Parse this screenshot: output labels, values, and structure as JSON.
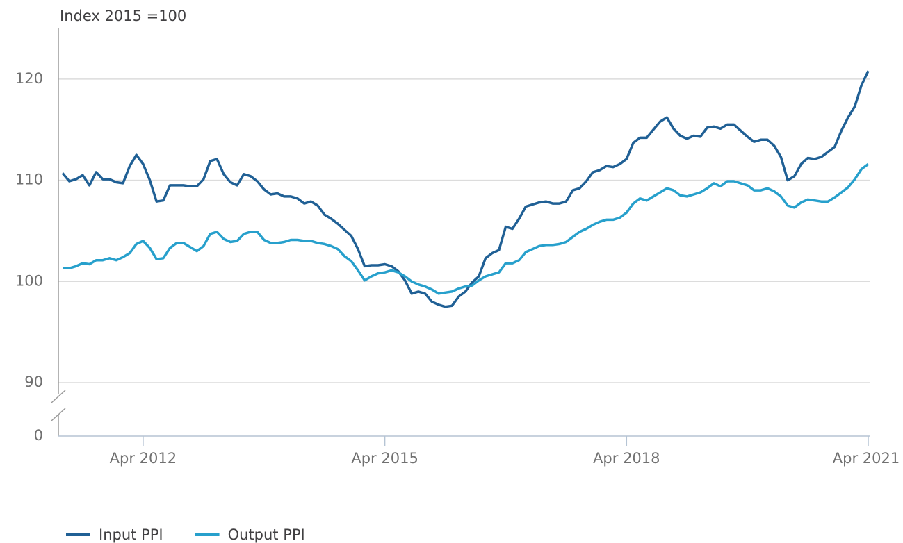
{
  "chart_data": {
    "type": "line",
    "y_axis_label": "Index 2015 =100",
    "x": [
      "Apr 2011",
      "May 2011",
      "Jun 2011",
      "Jul 2011",
      "Aug 2011",
      "Sep 2011",
      "Oct 2011",
      "Nov 2011",
      "Dec 2011",
      "Jan 2012",
      "Feb 2012",
      "Mar 2012",
      "Apr 2012",
      "May 2012",
      "Jun 2012",
      "Jul 2012",
      "Aug 2012",
      "Sep 2012",
      "Oct 2012",
      "Nov 2012",
      "Dec 2012",
      "Jan 2013",
      "Feb 2013",
      "Mar 2013",
      "Apr 2013",
      "May 2013",
      "Jun 2013",
      "Jul 2013",
      "Aug 2013",
      "Sep 2013",
      "Oct 2013",
      "Nov 2013",
      "Dec 2013",
      "Jan 2014",
      "Feb 2014",
      "Mar 2014",
      "Apr 2014",
      "May 2014",
      "Jun 2014",
      "Jul 2014",
      "Aug 2014",
      "Sep 2014",
      "Oct 2014",
      "Nov 2014",
      "Dec 2014",
      "Jan 2015",
      "Feb 2015",
      "Mar 2015",
      "Apr 2015",
      "May 2015",
      "Jun 2015",
      "Jul 2015",
      "Aug 2015",
      "Sep 2015",
      "Oct 2015",
      "Nov 2015",
      "Dec 2015",
      "Jan 2016",
      "Feb 2016",
      "Mar 2016",
      "Apr 2016",
      "May 2016",
      "Jun 2016",
      "Jul 2016",
      "Aug 2016",
      "Sep 2016",
      "Oct 2016",
      "Nov 2016",
      "Dec 2016",
      "Jan 2017",
      "Feb 2017",
      "Mar 2017",
      "Apr 2017",
      "May 2017",
      "Jun 2017",
      "Jul 2017",
      "Aug 2017",
      "Sep 2017",
      "Oct 2017",
      "Nov 2017",
      "Dec 2017",
      "Jan 2018",
      "Feb 2018",
      "Mar 2018",
      "Apr 2018",
      "May 2018",
      "Jun 2018",
      "Jul 2018",
      "Aug 2018",
      "Sep 2018",
      "Oct 2018",
      "Nov 2018",
      "Dec 2018",
      "Jan 2019",
      "Feb 2019",
      "Mar 2019",
      "Apr 2019",
      "May 2019",
      "Jun 2019",
      "Jul 2019",
      "Aug 2019",
      "Sep 2019",
      "Oct 2019",
      "Nov 2019",
      "Dec 2019",
      "Jan 2020",
      "Feb 2020",
      "Mar 2020",
      "Apr 2020",
      "May 2020",
      "Jun 2020",
      "Jul 2020",
      "Aug 2020",
      "Sep 2020",
      "Oct 2020",
      "Nov 2020",
      "Dec 2020",
      "Jan 2021",
      "Feb 2021",
      "Mar 2021",
      "Apr 2021"
    ],
    "series": [
      {
        "name": "Input PPI",
        "color": "#206095",
        "values": [
          110.7,
          109.9,
          110.1,
          110.5,
          109.5,
          110.8,
          110.1,
          110.1,
          109.8,
          109.7,
          111.4,
          112.5,
          111.6,
          110.0,
          107.9,
          108.0,
          109.5,
          109.5,
          109.5,
          109.4,
          109.4,
          110.1,
          111.9,
          112.1,
          110.6,
          109.8,
          109.5,
          110.6,
          110.4,
          109.9,
          109.1,
          108.6,
          108.7,
          108.4,
          108.4,
          108.2,
          107.7,
          107.9,
          107.5,
          106.6,
          106.2,
          105.7,
          105.1,
          104.5,
          103.2,
          101.5,
          101.6,
          101.6,
          101.7,
          101.5,
          101.0,
          100.1,
          98.8,
          99.0,
          98.8,
          98.0,
          97.7,
          97.5,
          97.6,
          98.5,
          99.0,
          99.9,
          100.5,
          102.3,
          102.8,
          103.1,
          105.4,
          105.2,
          106.2,
          107.4,
          107.6,
          107.8,
          107.9,
          107.7,
          107.7,
          107.9,
          109.0,
          109.2,
          109.9,
          110.8,
          111.0,
          111.4,
          111.3,
          111.6,
          112.1,
          113.7,
          114.2,
          114.2,
          115.0,
          115.8,
          116.2,
          115.1,
          114.4,
          114.1,
          114.4,
          114.3,
          115.2,
          115.3,
          115.1,
          115.5,
          115.5,
          114.9,
          114.3,
          113.8,
          114.0,
          114.0,
          113.4,
          112.3,
          110.0,
          110.4,
          111.6,
          112.2,
          112.1,
          112.3,
          112.8,
          113.3,
          114.9,
          116.2,
          117.3,
          119.4,
          120.8
        ]
      },
      {
        "name": "Output PPI",
        "color": "#27a0cc",
        "values": [
          101.3,
          101.3,
          101.5,
          101.8,
          101.7,
          102.1,
          102.1,
          102.3,
          102.1,
          102.4,
          102.8,
          103.7,
          104.0,
          103.3,
          102.2,
          102.3,
          103.3,
          103.8,
          103.8,
          103.4,
          103.0,
          103.5,
          104.7,
          104.9,
          104.2,
          103.9,
          104.0,
          104.7,
          104.9,
          104.9,
          104.1,
          103.8,
          103.8,
          103.9,
          104.1,
          104.1,
          104.0,
          104.0,
          103.8,
          103.7,
          103.5,
          103.2,
          102.5,
          102.0,
          101.1,
          100.1,
          100.5,
          100.8,
          100.9,
          101.1,
          100.9,
          100.5,
          100.0,
          99.7,
          99.5,
          99.2,
          98.8,
          98.9,
          99.0,
          99.3,
          99.5,
          99.6,
          100.1,
          100.5,
          100.7,
          100.9,
          101.8,
          101.8,
          102.1,
          102.9,
          103.2,
          103.5,
          103.6,
          103.6,
          103.7,
          103.9,
          104.4,
          104.9,
          105.2,
          105.6,
          105.9,
          106.1,
          106.1,
          106.3,
          106.8,
          107.7,
          108.2,
          108.0,
          108.4,
          108.8,
          109.2,
          109.0,
          108.5,
          108.4,
          108.6,
          108.8,
          109.2,
          109.7,
          109.4,
          109.9,
          109.9,
          109.7,
          109.5,
          109.0,
          109.0,
          109.2,
          108.9,
          108.4,
          107.5,
          107.3,
          107.8,
          108.1,
          108.0,
          107.9,
          107.9,
          108.3,
          108.8,
          109.3,
          110.1,
          111.1,
          111.6
        ]
      }
    ],
    "xticks": [
      "Apr 2012",
      "Apr 2015",
      "Apr 2018",
      "Apr 2021"
    ],
    "ylim": [
      90,
      125
    ],
    "yticks": [
      0,
      90,
      100,
      110,
      120
    ],
    "y_axis_break": true,
    "grid": true,
    "legend": "bottom"
  }
}
